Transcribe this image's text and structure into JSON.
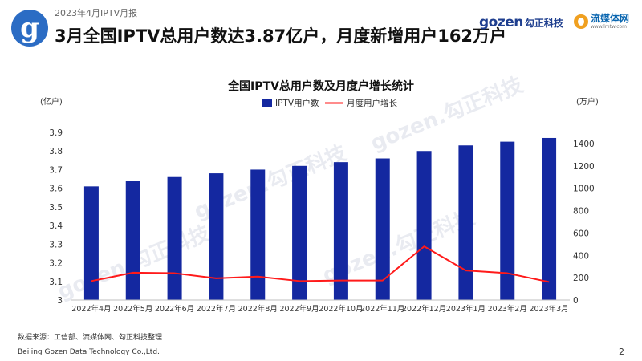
{
  "header": {
    "report_tag": "2023年4月IPTV月报",
    "headline": "3月全国IPTV总用户数达3.87亿户，月度新增用户162万户",
    "logo_letter": "g",
    "gozen_word": "gozen",
    "gozen_cn": "勾正科技",
    "lmtw_cn": "流媒体网",
    "lmtw_url": "www.lmtw.com"
  },
  "watermark": "gozen.勾正科技",
  "colors": {
    "bar": "#1428a0",
    "line": "#ff1a1a",
    "logo_blue": "#2b6cc4"
  },
  "chart_data": {
    "type": "bar",
    "title": "全国IPTV总用户数及月度户增长统计",
    "categories": [
      "2022年4月",
      "2022年5月",
      "2022年6月",
      "2022年7月",
      "2022年8月",
      "2022年9月",
      "2022年10月",
      "2022年11月",
      "2022年12月",
      "2023年1月",
      "2023年2月",
      "2023年3月"
    ],
    "series": [
      {
        "name": "IPTV用户数",
        "type": "bar",
        "axis": "left",
        "values": [
          3.61,
          3.64,
          3.66,
          3.68,
          3.7,
          3.72,
          3.74,
          3.76,
          3.8,
          3.83,
          3.85,
          3.87
        ]
      },
      {
        "name": "月度用户增长",
        "type": "line",
        "axis": "right",
        "values": [
          170,
          245,
          240,
          195,
          210,
          170,
          175,
          175,
          480,
          265,
          240,
          162
        ]
      }
    ],
    "y_left": {
      "unit": "(亿户)",
      "ylim": [
        3.0,
        3.9
      ],
      "ticks": [
        "3",
        "3.1",
        "3.2",
        "3.3",
        "3.4",
        "3.5",
        "3.6",
        "3.7",
        "3.8",
        "3.9"
      ]
    },
    "y_right": {
      "unit": "(万户)",
      "ylim": [
        0,
        1500
      ],
      "ticks": [
        "0",
        "200",
        "400",
        "600",
        "800",
        "1000",
        "1200",
        "1400"
      ]
    },
    "legend_position": "top-center",
    "grid": false
  },
  "footer": {
    "source": "数据来源：工信部、流媒体网、勾正科技整理",
    "company": "Beijing Gozen Data Technology Co.,Ltd.",
    "page": "2"
  }
}
